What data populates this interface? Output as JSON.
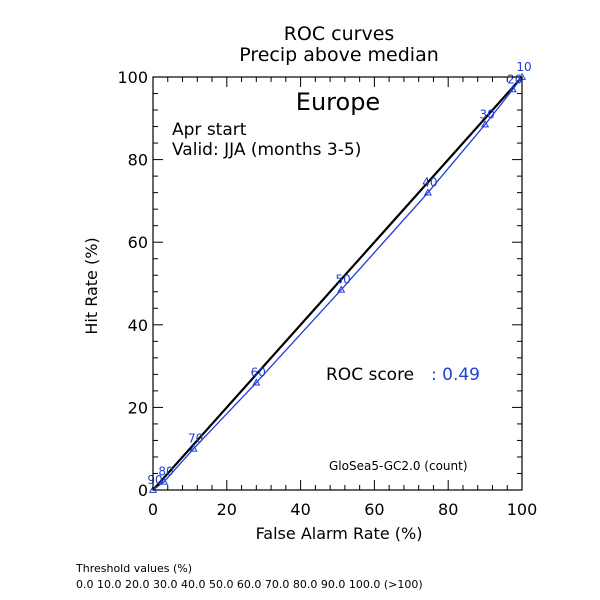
{
  "chart_data": {
    "type": "line",
    "title": "ROC curves",
    "subtitle": "Precip above median",
    "region": "Europe",
    "start": "Apr start",
    "valid": "Valid: JJA (months 3-5)",
    "xlabel": "False Alarm Rate (%)",
    "ylabel": "Hit Rate (%)",
    "xlim": [
      0,
      100
    ],
    "ylim": [
      0,
      100
    ],
    "xticks": [
      0,
      20,
      40,
      60,
      80,
      100
    ],
    "yticks": [
      0,
      20,
      40,
      60,
      80,
      100
    ],
    "roc_score_label": "ROC score",
    "roc_score_value": ": 0.49",
    "model_label": "GloSea5-GC2.0 (count)",
    "series": [
      {
        "color": "#1f3fd8",
        "marker": "triangle",
        "x": [
          0.0,
          3.0,
          11.0,
          28.0,
          51.0,
          74.5,
          90.0,
          97.5,
          100.0
        ],
        "y": [
          0.0,
          2.0,
          10.0,
          26.0,
          48.5,
          72.0,
          88.5,
          97.0,
          100.0
        ],
        "point_labels": [
          "90",
          "80",
          "70",
          "60",
          "50",
          "40",
          "30",
          "20",
          "10"
        ]
      }
    ],
    "reference_line": {
      "x": [
        0,
        100
      ],
      "y": [
        0,
        100
      ],
      "color": "#000000"
    }
  },
  "footer": {
    "threshold_title": "Threshold values (%)",
    "threshold_values": "0.0 10.0 20.0 30.0 40.0 50.0 60.0 70.0 80.0 90.0 100.0 (>100)"
  }
}
